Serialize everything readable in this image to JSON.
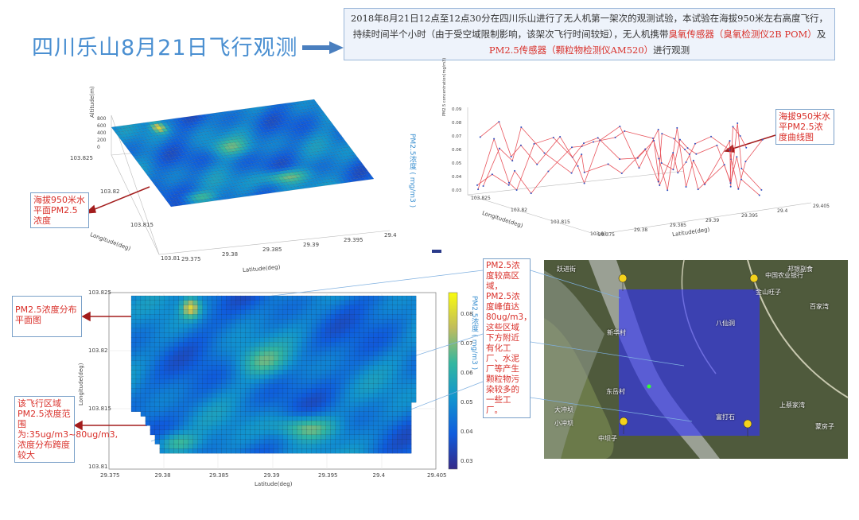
{
  "header": {
    "title": "四川乐山8月21日飞行观测"
  },
  "description": {
    "parts": [
      "2018年8月21日12点至12点30分在四川乐山进行了无人机第一架次的观测试验，本试验在海拔950米左右高度飞行，持续时间半个小时（由于受空域限制影响，该架次飞行时间较短），无人机携带",
      "臭氧传感器（臭氧检测仪2B POM）",
      "及",
      "PM2.5传感器（颗粒物检测仪AM520）",
      "进行观测"
    ]
  },
  "callouts": [
    "海拔950米水平面PM2.5浓度",
    "海拔950米水平PM2.5浓度曲线图",
    "PM2.5浓度分布平面图",
    "该飞行区域PM2.5浓度范围为:35ug/m3~80ug/m3,浓度分布跨度较大",
    "PM2.5浓度较高区域，PM2.5浓度峰值达80ug/m3，这些区域下方附近有化工厂、水泥厂等产生颗粒物污染较多的一些工厂。"
  ],
  "surface_plot": {
    "altitude_label": "Altitude(m)",
    "longitude_label": "Longitude(deg)",
    "latitude_label": "Latitude(deg)",
    "colorbar_label": "PM2.5浓度 ( mg/m3 )",
    "altitude_ticks": [
      800,
      600,
      400,
      200,
      0
    ],
    "longitude_ticks": [
      103.825,
      103.82,
      103.815,
      103.81
    ],
    "latitude_ticks": [
      29.375,
      29.38,
      29.385,
      29.39,
      29.395,
      29.4
    ]
  },
  "curve_plot": {
    "y_label": "PM2.5 concentration(mg/m3)",
    "longitude_label": "Longitude(deg)",
    "latitude_label": "Latitude(deg)",
    "y_ticks": [
      0.09,
      0.08,
      0.07,
      0.06,
      0.05,
      0.04,
      0.03
    ],
    "longitude_ticks": [
      103.825,
      103.82,
      103.815,
      103.81
    ],
    "latitude_ticks": [
      29.375,
      29.38,
      29.385,
      29.39,
      29.395,
      29.4,
      29.405
    ]
  },
  "heatmap_plot": {
    "x_label": "Latitude(deg)",
    "y_label": "Longitude(deg)",
    "colorbar_label": "PM2.5浓度 ( mg/m3 )",
    "x_ticks": [
      29.375,
      29.38,
      29.385,
      29.39,
      29.395,
      29.4,
      29.405
    ],
    "y_ticks": [
      103.825,
      103.82,
      103.815,
      103.81
    ],
    "colorbar_ticks": [
      0.08,
      0.07,
      0.06,
      0.05,
      0.04,
      0.03
    ]
  },
  "map": {
    "labels": [
      "跃进街",
      "邦银副食",
      "中国农业银行",
      "金山旺子",
      "百家湾",
      "新华村",
      "八仙洞",
      "东岳村",
      "大冲坝",
      "小冲坝",
      "中坝子",
      "富打石",
      "上蔡家湾",
      "蒙房子"
    ]
  }
}
